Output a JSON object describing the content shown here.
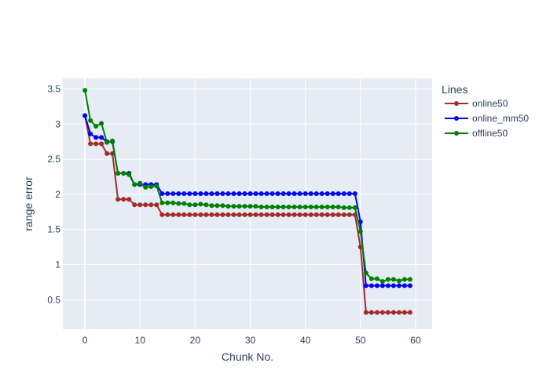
{
  "chart_data": {
    "type": "line",
    "title": "",
    "xlabel": "Chunk No.",
    "ylabel": "range error",
    "xlim": [
      -4,
      63
    ],
    "ylim": [
      0.08,
      3.65
    ],
    "xticks": [
      0,
      10,
      20,
      30,
      40,
      50,
      60
    ],
    "yticks": [
      0.5,
      1,
      1.5,
      2,
      2.5,
      3,
      3.5
    ],
    "grid": true,
    "legend_title": "Lines",
    "legend_position": "top-right, outside plot",
    "series": [
      {
        "name": "online50",
        "color": "#a52a2a",
        "x": [
          0,
          1,
          2,
          3,
          4,
          5,
          6,
          7,
          8,
          9,
          10,
          11,
          12,
          13,
          14,
          15,
          16,
          17,
          18,
          19,
          20,
          21,
          22,
          23,
          24,
          25,
          26,
          27,
          28,
          29,
          30,
          31,
          32,
          33,
          34,
          35,
          36,
          37,
          38,
          39,
          40,
          41,
          42,
          43,
          44,
          45,
          46,
          47,
          48,
          49,
          50,
          51,
          52,
          53,
          54,
          55,
          56,
          57,
          58,
          59
        ],
        "y": [
          3.12,
          2.72,
          2.72,
          2.72,
          2.58,
          2.58,
          1.93,
          1.93,
          1.93,
          1.85,
          1.85,
          1.85,
          1.85,
          1.85,
          1.71,
          1.71,
          1.71,
          1.71,
          1.71,
          1.71,
          1.71,
          1.71,
          1.71,
          1.71,
          1.71,
          1.71,
          1.71,
          1.71,
          1.71,
          1.71,
          1.71,
          1.71,
          1.71,
          1.71,
          1.71,
          1.71,
          1.71,
          1.71,
          1.71,
          1.71,
          1.71,
          1.71,
          1.71,
          1.71,
          1.71,
          1.71,
          1.71,
          1.71,
          1.71,
          1.71,
          1.25,
          0.32,
          0.32,
          0.32,
          0.32,
          0.32,
          0.32,
          0.32,
          0.32,
          0.32
        ]
      },
      {
        "name": "online_mm50",
        "color": "#0000ff",
        "x": [
          0,
          1,
          2,
          3,
          4,
          5,
          6,
          7,
          8,
          9,
          10,
          11,
          12,
          13,
          14,
          15,
          16,
          17,
          18,
          19,
          20,
          21,
          22,
          23,
          24,
          25,
          26,
          27,
          28,
          29,
          30,
          31,
          32,
          33,
          34,
          35,
          36,
          37,
          38,
          39,
          40,
          41,
          42,
          43,
          44,
          45,
          46,
          47,
          48,
          49,
          50,
          51,
          52,
          53,
          54,
          55,
          56,
          57,
          58,
          59
        ],
        "y": [
          3.12,
          2.86,
          2.81,
          2.81,
          2.75,
          2.75,
          2.3,
          2.3,
          2.3,
          2.14,
          2.14,
          2.14,
          2.14,
          2.14,
          2.01,
          2.01,
          2.01,
          2.01,
          2.01,
          2.01,
          2.01,
          2.01,
          2.01,
          2.01,
          2.01,
          2.01,
          2.01,
          2.01,
          2.01,
          2.01,
          2.01,
          2.01,
          2.01,
          2.01,
          2.01,
          2.01,
          2.01,
          2.01,
          2.01,
          2.01,
          2.01,
          2.01,
          2.01,
          2.01,
          2.01,
          2.01,
          2.01,
          2.01,
          2.01,
          2.01,
          1.61,
          0.7,
          0.7,
          0.7,
          0.7,
          0.7,
          0.7,
          0.7,
          0.7,
          0.7
        ]
      },
      {
        "name": "offline50",
        "color": "#008000",
        "x": [
          0,
          1,
          2,
          3,
          4,
          5,
          6,
          7,
          8,
          9,
          10,
          11,
          12,
          13,
          14,
          15,
          16,
          17,
          18,
          19,
          20,
          21,
          22,
          23,
          24,
          25,
          26,
          27,
          28,
          29,
          30,
          31,
          32,
          33,
          34,
          35,
          36,
          37,
          38,
          39,
          40,
          41,
          42,
          43,
          44,
          45,
          46,
          47,
          48,
          49,
          50,
          51,
          52,
          53,
          54,
          55,
          56,
          57,
          58,
          59
        ],
        "y": [
          3.48,
          3.05,
          2.97,
          3.01,
          2.74,
          2.76,
          2.3,
          2.3,
          2.28,
          2.14,
          2.16,
          2.1,
          2.11,
          2.12,
          1.88,
          1.88,
          1.88,
          1.87,
          1.87,
          1.85,
          1.85,
          1.86,
          1.85,
          1.84,
          1.84,
          1.84,
          1.83,
          1.83,
          1.83,
          1.83,
          1.83,
          1.83,
          1.82,
          1.82,
          1.82,
          1.82,
          1.82,
          1.82,
          1.82,
          1.82,
          1.82,
          1.82,
          1.82,
          1.82,
          1.82,
          1.82,
          1.82,
          1.81,
          1.81,
          1.81,
          1.47,
          0.88,
          0.8,
          0.8,
          0.76,
          0.79,
          0.79,
          0.77,
          0.79,
          0.79
        ]
      }
    ]
  }
}
